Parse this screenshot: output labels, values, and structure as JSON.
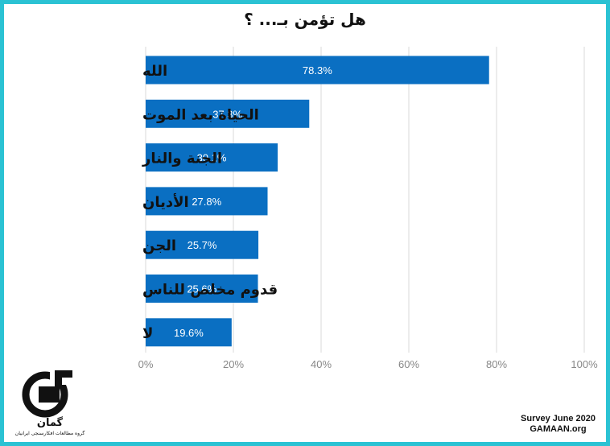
{
  "chart_data": {
    "type": "bar",
    "orientation": "horizontal",
    "title": "هل تؤمن بـ... ؟",
    "categories": [
      "الله",
      "الحياة بعد الموت",
      "الجنة والنار",
      "الأديان",
      "الجن",
      "قدوم مخلص للناس",
      "لا"
    ],
    "values": [
      78.3,
      37.3,
      30.1,
      27.8,
      25.7,
      25.6,
      19.6
    ],
    "value_labels": [
      "78.3%",
      "37.3%",
      "30.1%",
      "27.8%",
      "25.7%",
      "25.6%",
      "19.6%"
    ],
    "xlim": [
      0,
      100
    ],
    "x_ticks": [
      0,
      20,
      40,
      60,
      80,
      100
    ],
    "x_tick_labels": [
      "0%",
      "20%",
      "40%",
      "60%",
      "80%",
      "100%"
    ],
    "xlabel": "",
    "ylabel": "",
    "grid": true,
    "bar_color": "#0a6fc2"
  },
  "frame_color": "#2bc2d3",
  "footer": {
    "line1": "Survey June 2020",
    "line2": "GAMAAN.org"
  },
  "logo": {
    "word": "گمان",
    "subtitle": "گروه مطالعات افکارسنجی ایرانیان"
  }
}
